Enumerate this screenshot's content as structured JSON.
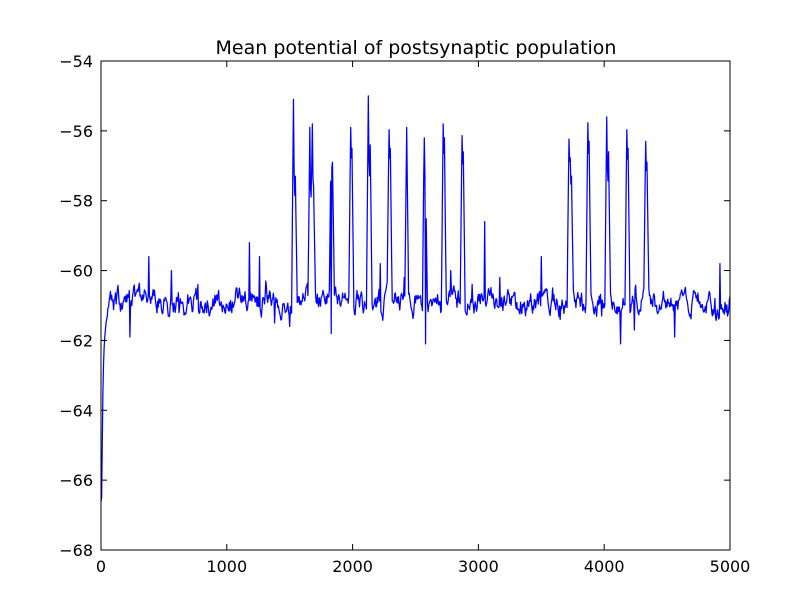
{
  "chart_data": {
    "type": "line",
    "title": "Mean potential of postsynaptic population",
    "xlabel": "",
    "ylabel": "",
    "xlim": [
      0,
      5000
    ],
    "ylim": [
      -68,
      -54
    ],
    "xticks": [
      0,
      1000,
      2000,
      3000,
      4000,
      5000
    ],
    "yticks": [
      -68,
      -66,
      -64,
      -62,
      -60,
      -58,
      -56,
      -54
    ],
    "xtick_labels": [
      "0",
      "1000",
      "2000",
      "3000",
      "4000",
      "5000"
    ],
    "ytick_labels": [
      "−68",
      "−66",
      "−64",
      "−62",
      "−60",
      "−58",
      "−56",
      "−54"
    ],
    "grid": false,
    "legend": "none",
    "series": [
      {
        "color": "#0000ff",
        "baseline": -60.9,
        "noise_amplitude": 0.5,
        "x_start": 0,
        "x_end": 5000,
        "x_step": 5,
        "initial_transient": [
          [
            0,
            -66.6
          ],
          [
            5,
            -66.5
          ],
          [
            10,
            -65.0
          ],
          [
            15,
            -63.5
          ],
          [
            20,
            -62.7
          ],
          [
            25,
            -62.2
          ],
          [
            30,
            -61.9
          ],
          [
            35,
            -61.7
          ],
          [
            40,
            -61.5
          ],
          [
            50,
            -61.3
          ]
        ],
        "small_bumps": [
          [
            230,
            -61.9
          ],
          [
            380,
            -59.6
          ],
          [
            560,
            -60.0
          ],
          [
            620,
            -61.2
          ],
          [
            770,
            -60.4
          ],
          [
            900,
            -61.0
          ],
          [
            1080,
            -60.5
          ],
          [
            1180,
            -59.2
          ],
          [
            1260,
            -59.6
          ],
          [
            1310,
            -60.3
          ],
          [
            1380,
            -61.5
          ],
          [
            1500,
            -61.6
          ],
          [
            1830,
            -61.8
          ],
          [
            2220,
            -59.8
          ],
          [
            2330,
            -60.9
          ],
          [
            2410,
            -60.2
          ],
          [
            2580,
            -62.1
          ],
          [
            2700,
            -61.2
          ],
          [
            2780,
            -60.0
          ],
          [
            2950,
            -60.4
          ],
          [
            3050,
            -58.6
          ],
          [
            3170,
            -60.2
          ],
          [
            3320,
            -61.1
          ],
          [
            3500,
            -59.6
          ],
          [
            3590,
            -60.5
          ],
          [
            3650,
            -61.4
          ],
          [
            3980,
            -61.3
          ],
          [
            4130,
            -62.1
          ],
          [
            4240,
            -61.7
          ],
          [
            4560,
            -61.9
          ],
          [
            4880,
            -60.8
          ],
          [
            4920,
            -59.8
          ],
          [
            4980,
            -61.3
          ]
        ],
        "spikes": [
          [
            1528,
            -55.1
          ],
          [
            1545,
            -57.3
          ],
          [
            1660,
            -55.9
          ],
          [
            1680,
            -54.9
          ],
          [
            1688,
            -57.6
          ],
          [
            1830,
            -55.9
          ],
          [
            1838,
            -56.9
          ],
          [
            1985,
            -55.6
          ],
          [
            1995,
            -56.5
          ],
          [
            2125,
            -55.0
          ],
          [
            2140,
            -56.4
          ],
          [
            2290,
            -55.7
          ],
          [
            2300,
            -56.5
          ],
          [
            2430,
            -55.9
          ],
          [
            2570,
            -55.7
          ],
          [
            2580,
            -57.2
          ],
          [
            2720,
            -55.6
          ],
          [
            2730,
            -56.2
          ],
          [
            2870,
            -55.9
          ],
          [
            2880,
            -56.6
          ],
          [
            3720,
            -56.1
          ],
          [
            3730,
            -56.5
          ],
          [
            3740,
            -57.3
          ],
          [
            3870,
            -55.5
          ],
          [
            3880,
            -56.3
          ],
          [
            4020,
            -55.6
          ],
          [
            4035,
            -56.6
          ],
          [
            4180,
            -55.7
          ],
          [
            4190,
            -56.5
          ],
          [
            4330,
            -56.0
          ],
          [
            4340,
            -56.9
          ]
        ]
      }
    ]
  }
}
